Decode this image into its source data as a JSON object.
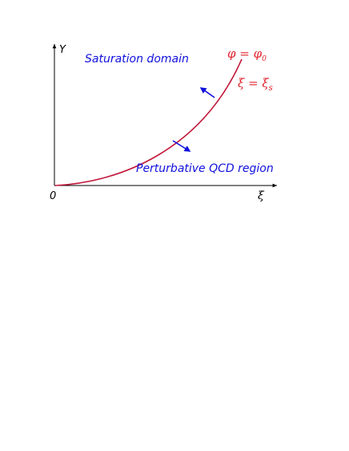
{
  "axes": {
    "y_label": "Y",
    "x_label": "ξ",
    "origin_label": "0"
  },
  "regions": {
    "saturation": "Saturation domain",
    "perturbative": "Perturbative QCD region"
  },
  "curve_labels": {
    "phi": "φ = φ",
    "phi_sub": "0",
    "xi": "ξ = ξ",
    "xi_sub": "s"
  },
  "colors": {
    "curve": "#c2183a",
    "region_text": "#1010dd",
    "arrow": "#1010dd",
    "curve_label": "#e0202a",
    "axis": "#000000"
  }
}
